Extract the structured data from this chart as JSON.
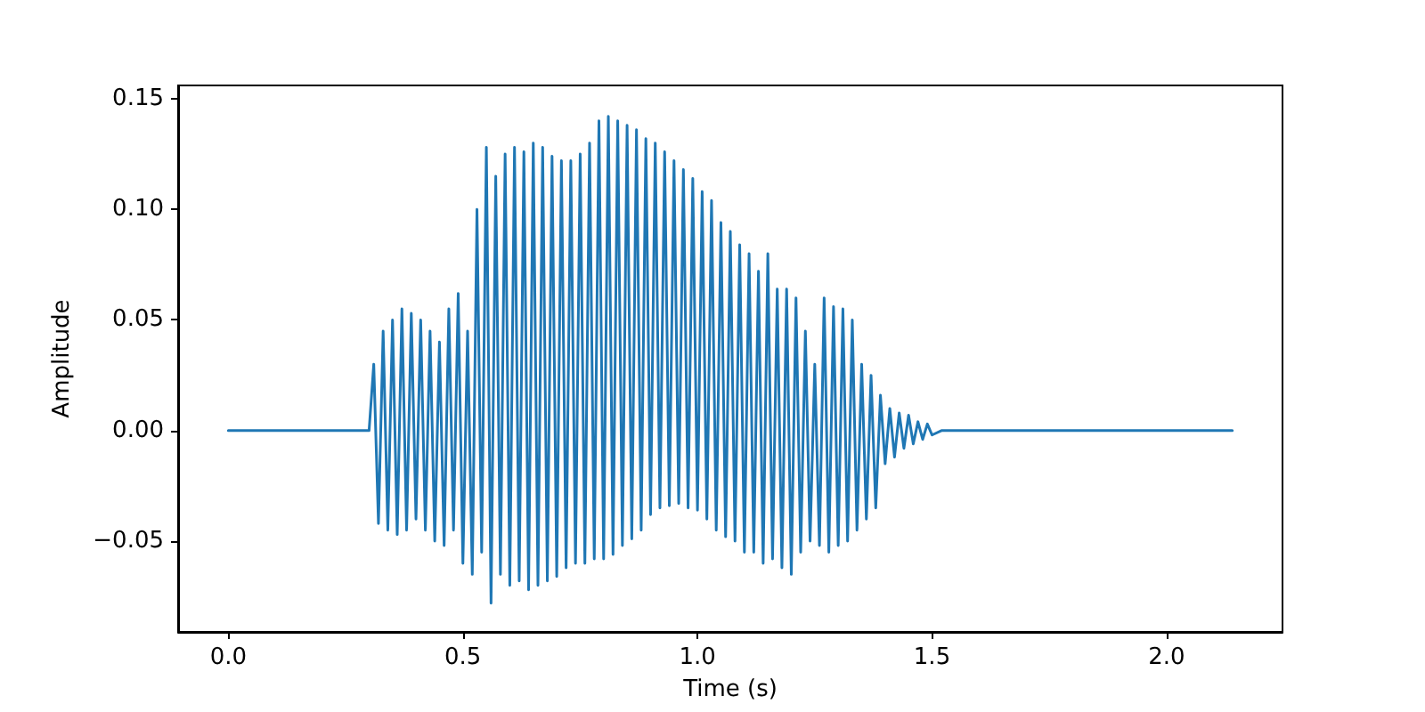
{
  "chart_data": {
    "type": "line",
    "xlabel": "Time (s)",
    "ylabel": "Amplitude",
    "xlim": [
      -0.107,
      2.247
    ],
    "ylim": [
      -0.091,
      0.156
    ],
    "xticks": [
      {
        "value": 0,
        "label": "0.0"
      },
      {
        "value": 0.5,
        "label": "0.5"
      },
      {
        "value": 1,
        "label": "1.0"
      },
      {
        "value": 1.5,
        "label": "1.5"
      },
      {
        "value": 2,
        "label": "2.0"
      }
    ],
    "yticks": [
      {
        "value": -0.05,
        "label": "−0.05"
      },
      {
        "value": 0,
        "label": "0.00"
      },
      {
        "value": 0.05,
        "label": "0.05"
      },
      {
        "value": 0.1,
        "label": "0.10"
      },
      {
        "value": 0.15,
        "label": "0.15"
      }
    ],
    "grid": false,
    "marker": "none",
    "line_style": "solid",
    "series": [
      {
        "color": "#1f77b4",
        "x": [
          0,
          0.3,
          0.31,
          0.32,
          0.33,
          0.34,
          0.35,
          0.36,
          0.37,
          0.38,
          0.39,
          0.4,
          0.41,
          0.42,
          0.43,
          0.44,
          0.45,
          0.46,
          0.47,
          0.48,
          0.49,
          0.5,
          0.51,
          0.52,
          0.53,
          0.54,
          0.55,
          0.56,
          0.57,
          0.58,
          0.59,
          0.6,
          0.61,
          0.62,
          0.63,
          0.64,
          0.65,
          0.66,
          0.67,
          0.68,
          0.69,
          0.7,
          0.71,
          0.72,
          0.73,
          0.74,
          0.75,
          0.76,
          0.77,
          0.78,
          0.79,
          0.8,
          0.81,
          0.82,
          0.83,
          0.84,
          0.85,
          0.86,
          0.87,
          0.88,
          0.89,
          0.9,
          0.91,
          0.92,
          0.93,
          0.94,
          0.95,
          0.96,
          0.97,
          0.98,
          0.99,
          1.0,
          1.01,
          1.02,
          1.03,
          1.04,
          1.05,
          1.06,
          1.07,
          1.08,
          1.09,
          1.1,
          1.11,
          1.12,
          1.13,
          1.14,
          1.15,
          1.16,
          1.17,
          1.18,
          1.19,
          1.2,
          1.21,
          1.22,
          1.23,
          1.24,
          1.25,
          1.26,
          1.27,
          1.28,
          1.29,
          1.3,
          1.31,
          1.32,
          1.33,
          1.34,
          1.35,
          1.36,
          1.37,
          1.38,
          1.39,
          1.4,
          1.41,
          1.42,
          1.43,
          1.44,
          1.45,
          1.46,
          1.47,
          1.48,
          1.49,
          1.5,
          1.52,
          2.14
        ],
        "values": [
          0,
          0,
          0.03,
          -0.042,
          0.045,
          -0.045,
          0.05,
          -0.047,
          0.055,
          -0.045,
          0.053,
          -0.04,
          0.05,
          -0.045,
          0.045,
          -0.05,
          0.04,
          -0.052,
          0.055,
          -0.045,
          0.062,
          -0.06,
          0.045,
          -0.065,
          0.1,
          -0.055,
          0.128,
          -0.078,
          0.115,
          -0.065,
          0.125,
          -0.07,
          0.128,
          -0.068,
          0.126,
          -0.072,
          0.13,
          -0.07,
          0.128,
          -0.068,
          0.124,
          -0.066,
          0.122,
          -0.062,
          0.122,
          -0.06,
          0.125,
          -0.06,
          0.13,
          -0.058,
          0.14,
          -0.058,
          0.142,
          -0.056,
          0.14,
          -0.052,
          0.138,
          -0.049,
          0.136,
          -0.045,
          0.132,
          -0.038,
          0.13,
          -0.035,
          0.126,
          -0.034,
          0.122,
          -0.033,
          0.118,
          -0.035,
          0.114,
          -0.036,
          0.108,
          -0.04,
          0.104,
          -0.045,
          0.094,
          -0.048,
          0.09,
          -0.05,
          0.084,
          -0.055,
          0.08,
          -0.055,
          0.072,
          -0.06,
          0.08,
          -0.058,
          0.064,
          -0.062,
          0.064,
          -0.065,
          0.06,
          -0.055,
          0.045,
          -0.05,
          0.03,
          -0.052,
          0.06,
          -0.055,
          0.056,
          -0.052,
          0.055,
          -0.05,
          0.05,
          -0.045,
          0.03,
          -0.04,
          0.025,
          -0.035,
          0.016,
          -0.015,
          0.01,
          -0.012,
          0.008,
          -0.008,
          0.007,
          -0.006,
          0.004,
          -0.004,
          0.003,
          -0.002,
          0,
          0
        ]
      }
    ]
  }
}
